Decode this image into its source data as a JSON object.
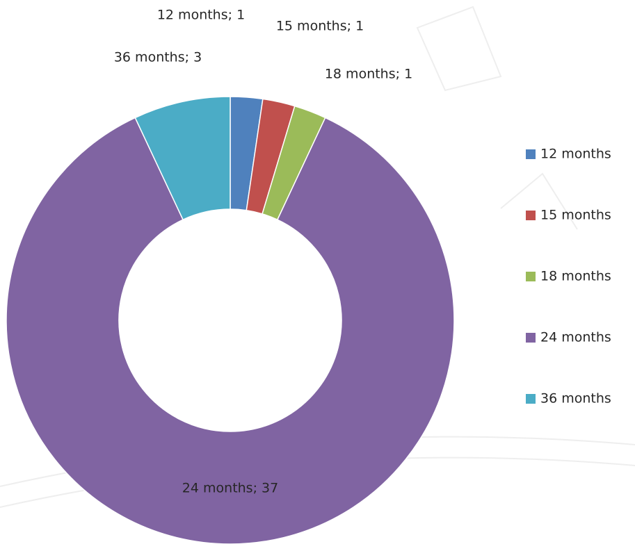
{
  "chart_data": {
    "type": "donut",
    "categories": [
      "12 months",
      "15 months",
      "18 months",
      "24 months",
      "36 months"
    ],
    "values": [
      1,
      1,
      1,
      37,
      3
    ],
    "value_labels": [
      "12 months; 1",
      "15 months; 1",
      "18 months; 1",
      "24 months; 37",
      "36 months; 3"
    ],
    "colors": [
      "#4f81bd",
      "#c0504d",
      "#9bbb59",
      "#8064a2",
      "#4bacc6"
    ],
    "legend": "right"
  }
}
